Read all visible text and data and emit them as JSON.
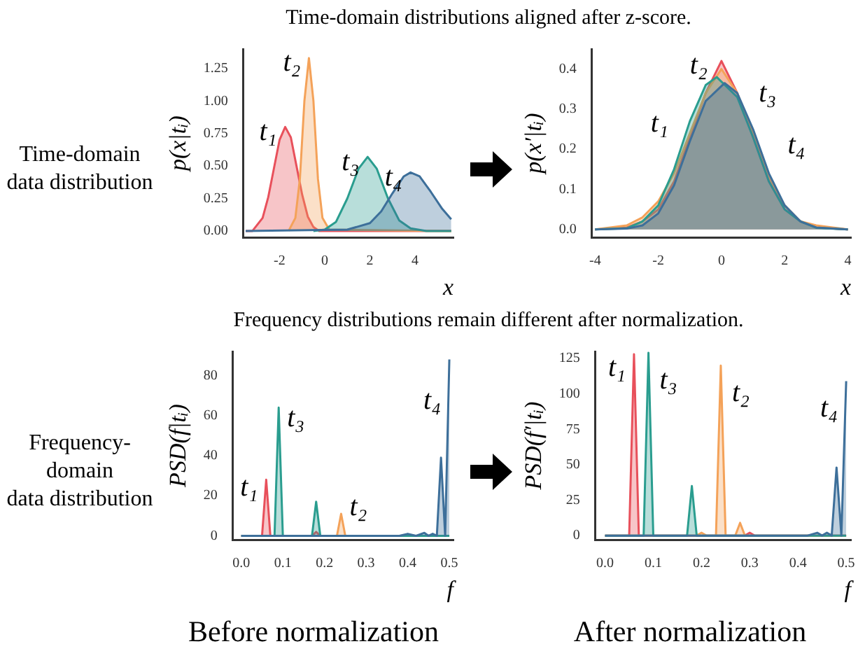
{
  "chart_data": [
    {
      "type": "area",
      "title": "Time-domain distributions aligned after z-score.",
      "ylabel": "p(x|tᵢ)",
      "xlabel": "x",
      "annotations": [
        "Time-domain\ndata distribution"
      ],
      "xlim": [
        -3.6,
        5.7
      ],
      "xticks": [
        -2,
        0,
        2,
        4
      ],
      "ylim": [
        -0.05,
        1.4
      ],
      "yticks": [
        {
          "value": 0,
          "label": "0.00"
        },
        0.25,
        {
          "value": 0.5,
          "label": "0.50"
        },
        0.75,
        {
          "value": 1,
          "label": "1.00"
        },
        1.25
      ],
      "grid": false,
      "legend": false,
      "marker": "none",
      "series": [
        {
          "name": "t₁",
          "color": "#e8505b",
          "x": [
            -3.5,
            -3.2,
            -2.75,
            -2.5,
            -2.25,
            -2,
            -1.75,
            -1.5,
            -1.25,
            -1,
            -0.75,
            -0.5,
            -0.25,
            5.6
          ],
          "values": [
            0,
            0,
            0.1,
            0.26,
            0.48,
            0.7,
            0.8,
            0.72,
            0.5,
            0.28,
            0.11,
            0.03,
            0,
            0
          ]
        },
        {
          "name": "t₂",
          "color": "#f4a259",
          "x": [
            -1.6,
            -1.3,
            -1.1,
            -0.9,
            -0.7,
            -0.5,
            -0.3,
            -0.1,
            0.2,
            5.6
          ],
          "values": [
            0,
            0.1,
            0.4,
            1,
            1.33,
            1,
            0.4,
            0.1,
            0.01,
            0
          ]
        },
        {
          "name": "t₃",
          "color": "#2a9d8f",
          "x": [
            -0.5,
            0,
            0.5,
            1,
            1.5,
            1.9,
            2.3,
            2.8,
            3.3,
            3.8,
            4.5,
            5.6
          ],
          "values": [
            0,
            0.01,
            0.07,
            0.25,
            0.48,
            0.57,
            0.48,
            0.25,
            0.08,
            0.02,
            0,
            0
          ]
        },
        {
          "name": "t₄",
          "color": "#3d6f9a",
          "x": [
            -3.5,
            1,
            2,
            2.5,
            3,
            3.5,
            3.8,
            4.2,
            4.7,
            5.2,
            5.6
          ],
          "values": [
            0,
            0.01,
            0.06,
            0.15,
            0.29,
            0.42,
            0.45,
            0.42,
            0.3,
            0.17,
            0.09
          ]
        }
      ]
    },
    {
      "type": "area",
      "ylabel": "p(x′|tᵢ)",
      "xlabel": "x",
      "xlim": [
        -4.1,
        4.1
      ],
      "xticks": [
        -4,
        -2,
        0,
        2,
        4
      ],
      "ylim": [
        -0.02,
        0.45
      ],
      "yticks": [
        {
          "value": 0,
          "label": "0.0"
        },
        0.1,
        0.2,
        0.3,
        0.4
      ],
      "grid": false,
      "legend": false,
      "marker": "none",
      "series": [
        {
          "name": "t₁",
          "color": "#e8505b",
          "x": [
            -4,
            -3,
            -2.5,
            -2,
            -1.5,
            -1,
            -0.5,
            0,
            0.5,
            1,
            1.5,
            2,
            2.5,
            3,
            4
          ],
          "values": [
            0,
            0.005,
            0.02,
            0.05,
            0.12,
            0.23,
            0.34,
            0.42,
            0.34,
            0.23,
            0.12,
            0.05,
            0.02,
            0.005,
            0
          ]
        },
        {
          "name": "t₂",
          "color": "#f4a259",
          "x": [
            -4,
            -3,
            -2.5,
            -2,
            -1.5,
            -1,
            -0.5,
            0,
            0.5,
            1,
            1.5,
            2,
            2.5,
            3,
            4
          ],
          "values": [
            0,
            0.01,
            0.03,
            0.07,
            0.14,
            0.24,
            0.34,
            0.4,
            0.34,
            0.24,
            0.13,
            0.06,
            0.02,
            0.01,
            0
          ]
        },
        {
          "name": "t₃",
          "color": "#2a9d8f",
          "x": [
            -4,
            -3,
            -2.5,
            -2,
            -1.5,
            -1,
            -0.5,
            -0.15,
            0.5,
            1,
            1.5,
            2,
            2.5,
            3,
            4
          ],
          "values": [
            0,
            0.003,
            0.02,
            0.06,
            0.15,
            0.27,
            0.36,
            0.38,
            0.33,
            0.23,
            0.12,
            0.05,
            0.02,
            0.004,
            0
          ]
        },
        {
          "name": "t₄",
          "color": "#3d6f9a",
          "x": [
            -4,
            -3,
            -2.5,
            -2,
            -1.5,
            -1,
            -0.5,
            0.1,
            0.5,
            1,
            1.5,
            2,
            2.5,
            3,
            4
          ],
          "values": [
            0,
            0.002,
            0.01,
            0.04,
            0.11,
            0.22,
            0.32,
            0.365,
            0.34,
            0.25,
            0.14,
            0.06,
            0.02,
            0.005,
            0
          ]
        }
      ]
    },
    {
      "type": "area",
      "title": "Frequency distributions remain different after normalization.",
      "ylabel": "PSD(f|tᵢ)",
      "xlabel": "f",
      "annotations": [
        "Frequency-domain\ndata distribution",
        "Before normalization"
      ],
      "xlim": [
        -0.02,
        0.51
      ],
      "xticks": [
        {
          "value": 0,
          "label": "0.0"
        },
        0.1,
        0.2,
        0.3,
        0.4,
        0.5
      ],
      "ylim": [
        -2,
        92
      ],
      "yticks": [
        0,
        20,
        40,
        60,
        80
      ],
      "grid": false,
      "legend": false,
      "marker": "none",
      "series": [
        {
          "name": "t₁",
          "color": "#e8505b",
          "x": [
            0,
            0.05,
            0.06,
            0.07,
            0.17,
            0.18,
            0.19,
            0.5
          ],
          "values": [
            0,
            0,
            28,
            0,
            0,
            2,
            0,
            0
          ]
        },
        {
          "name": "t₂",
          "color": "#f4a259",
          "x": [
            0,
            0.23,
            0.24,
            0.25,
            0.5
          ],
          "values": [
            0,
            0,
            11,
            0,
            0
          ]
        },
        {
          "name": "t₃",
          "color": "#2a9d8f",
          "x": [
            0,
            0.08,
            0.09,
            0.1,
            0.17,
            0.18,
            0.19,
            0.5
          ],
          "values": [
            0,
            0,
            64,
            0,
            0,
            17,
            0,
            0
          ]
        },
        {
          "name": "t₄",
          "color": "#3d6f9a",
          "x": [
            0,
            0.38,
            0.4,
            0.42,
            0.44,
            0.45,
            0.46,
            0.47,
            0.48,
            0.49,
            0.5
          ],
          "values": [
            0,
            0,
            1,
            0,
            1.5,
            0,
            1,
            0,
            39,
            0,
            88
          ]
        }
      ]
    },
    {
      "type": "area",
      "ylabel": "PSD(f′|tᵢ)",
      "xlabel": "f",
      "annotations": [
        "After normalization"
      ],
      "xlim": [
        -0.02,
        0.51
      ],
      "xticks": [
        {
          "value": 0,
          "label": "0.0"
        },
        0.1,
        0.2,
        0.3,
        0.4,
        0.5
      ],
      "ylim": [
        -3,
        130
      ],
      "yticks": [
        0,
        25,
        50,
        75,
        100,
        125
      ],
      "grid": false,
      "legend": false,
      "marker": "none",
      "series": [
        {
          "name": "t₁",
          "color": "#e8505b",
          "x": [
            0,
            0.05,
            0.06,
            0.07,
            0.29,
            0.3,
            0.31,
            0.5
          ],
          "values": [
            0,
            0,
            128,
            0,
            0,
            2,
            0,
            0
          ]
        },
        {
          "name": "t₂",
          "color": "#f4a259",
          "x": [
            0,
            0.19,
            0.2,
            0.21,
            0.23,
            0.24,
            0.25,
            0.27,
            0.28,
            0.29,
            0.5
          ],
          "values": [
            0,
            0,
            2,
            0,
            0,
            120,
            0,
            0,
            9,
            0,
            0
          ]
        },
        {
          "name": "t₃",
          "color": "#2a9d8f",
          "x": [
            0,
            0.08,
            0.09,
            0.1,
            0.17,
            0.18,
            0.19,
            0.5
          ],
          "values": [
            0,
            0,
            129,
            0,
            0,
            35,
            0,
            0
          ]
        },
        {
          "name": "t₄",
          "color": "#3d6f9a",
          "x": [
            0,
            0.42,
            0.44,
            0.45,
            0.46,
            0.47,
            0.48,
            0.49,
            0.5
          ],
          "values": [
            0,
            0,
            2,
            0,
            2,
            0,
            48,
            0,
            109
          ]
        }
      ]
    }
  ]
}
